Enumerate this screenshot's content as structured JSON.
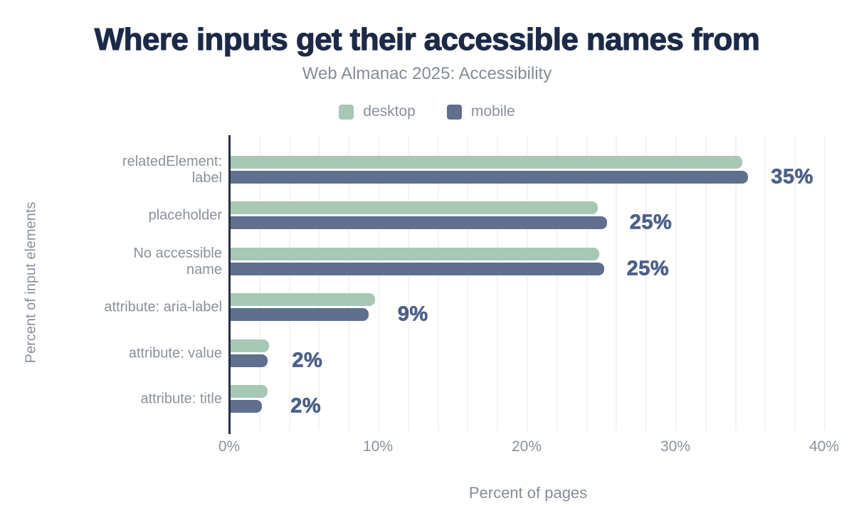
{
  "chart_data": {
    "type": "bar",
    "orientation": "horizontal",
    "title": "Where inputs get their accessible names from",
    "subtitle": "Web Almanac 2025: Accessibility",
    "xlabel": "Percent of pages",
    "ylabel": "Percent of input elements",
    "xlim": [
      0,
      40
    ],
    "x_ticks": [
      "0%",
      "10%",
      "20%",
      "30%",
      "40%"
    ],
    "grid": "vertical-on",
    "grid_interval_pct": 2,
    "legend_position": "top",
    "series": [
      {
        "name": "desktop",
        "color": "#a6c8b5"
      },
      {
        "name": "mobile",
        "color": "#5f6f8d"
      }
    ],
    "categories": [
      "relatedElement:\nlabel",
      "placeholder",
      "No accessible\nname",
      "attribute: aria-label",
      "attribute: value",
      "attribute: title"
    ],
    "values": {
      "desktop": [
        34.4,
        24.7,
        24.8,
        9.7,
        2.6,
        2.5
      ],
      "mobile": [
        34.8,
        25.3,
        25.1,
        9.3,
        2.5,
        2.1
      ]
    },
    "value_labels": [
      "35%",
      "25%",
      "25%",
      "9%",
      "2%",
      "2%"
    ]
  },
  "colors": {
    "title": "#1c2a47",
    "subtitle": "#858c97",
    "axis_text": "#8a919b",
    "value_label": "#4c618a",
    "axis_line": "#273143",
    "gridline": "#f3f3f6"
  }
}
